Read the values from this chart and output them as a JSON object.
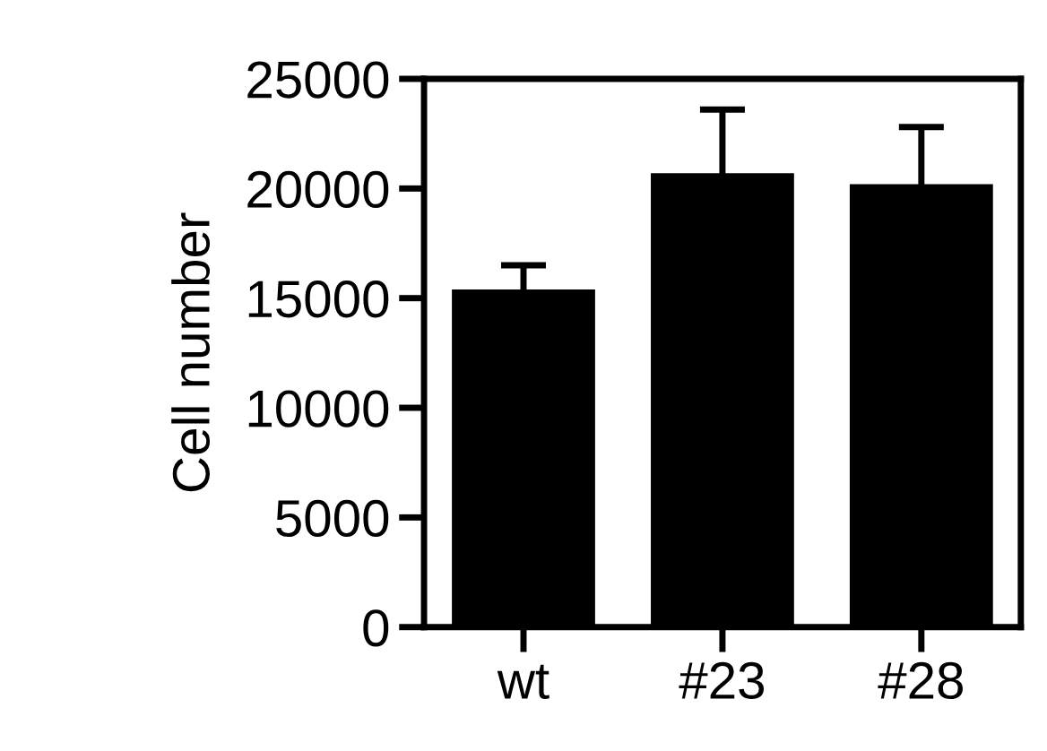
{
  "chart_data": {
    "type": "bar",
    "ylabel": "Cell number",
    "categories": [
      "wt",
      "#23",
      "#28"
    ],
    "values": [
      15400,
      20700,
      20200
    ],
    "errors": [
      1100,
      2900,
      2600
    ],
    "color": "#000000",
    "ylim": [
      0,
      25000
    ],
    "yticks": [
      0,
      5000,
      10000,
      15000,
      20000,
      25000
    ],
    "grid": false,
    "legend": false
  }
}
